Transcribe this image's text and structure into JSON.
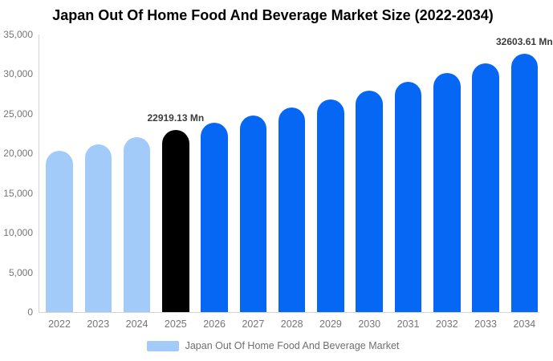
{
  "title": "Japan Out Of Home Food And Beverage Market Size (2022-2034)",
  "legend": {
    "label": "Japan Out Of Home Food And Beverage Market",
    "swatch_color": "#a2cbfa"
  },
  "colors": {
    "bar_past": "#a2cbfa",
    "bar_highlight": "#000000",
    "bar_forecast": "#0667f5",
    "axis_line": "#d4d4d4",
    "tick_text": "#757575",
    "data_label_text": "#3c3c3c",
    "title_text": "#000000"
  },
  "chart_data": {
    "type": "bar",
    "title": "Japan Out Of Home Food And Beverage Market Size (2022-2034)",
    "categories": [
      "2022",
      "2023",
      "2024",
      "2025",
      "2026",
      "2027",
      "2028",
      "2029",
      "2030",
      "2031",
      "2032",
      "2033",
      "2034"
    ],
    "values": [
      20375,
      21190,
      22037,
      22919.13,
      23836,
      24790,
      25781,
      26813,
      27885,
      29000,
      30160,
      31367,
      32603.61
    ],
    "unit": "Mn",
    "ylim": [
      0,
      35000
    ],
    "ytick_step": 5000,
    "ytick_labels": [
      "0",
      "5,000",
      "10,000",
      "15,000",
      "20,000",
      "25,000",
      "30,000",
      "35,000"
    ],
    "xlabel": "",
    "ylabel": "",
    "grid": false,
    "legend_position": "bottom",
    "past_years": [
      "2022",
      "2023",
      "2024"
    ],
    "highlight_year": "2025",
    "annotations": [
      {
        "category": "2025",
        "text": "22919.13 Mn"
      },
      {
        "category": "2034",
        "text": "32603.61 Mn"
      }
    ]
  }
}
